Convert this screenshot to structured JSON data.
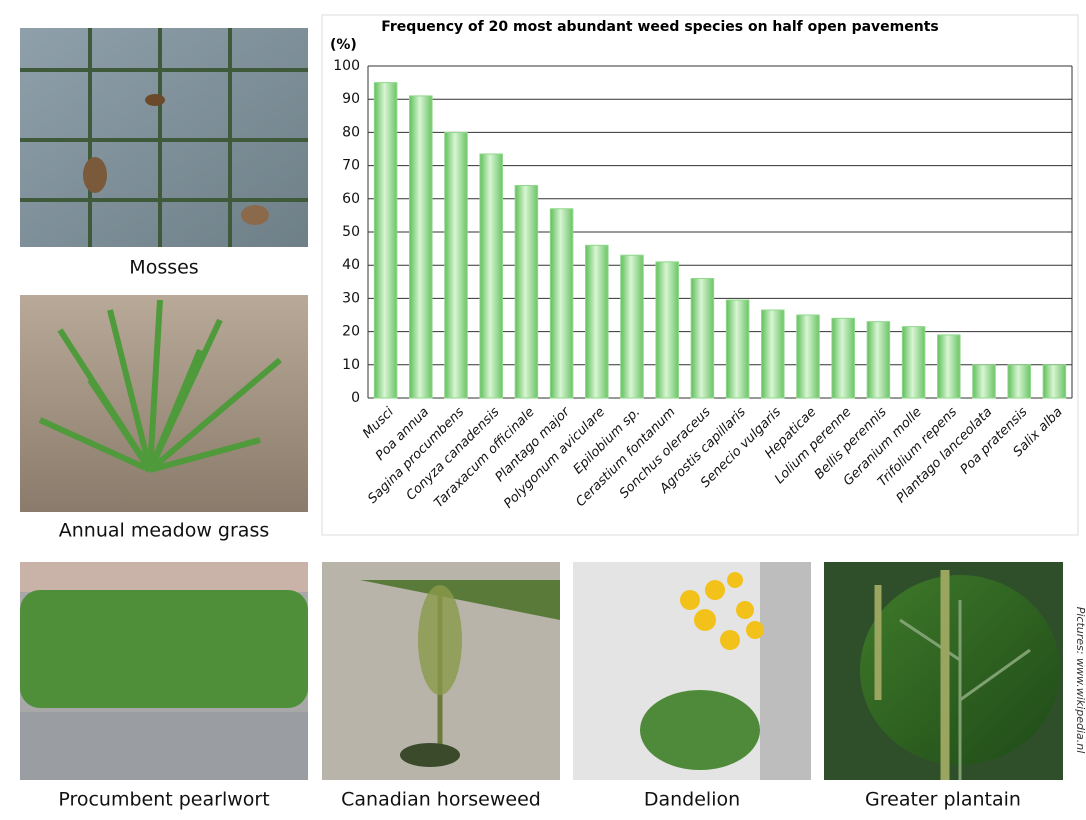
{
  "chart_data": {
    "type": "bar",
    "title": "Frequency of 20 most abundant weed species on half open pavements",
    "y_label": "(%)",
    "categories": [
      "Musci",
      "Poa annua",
      "Sagina procumbens",
      "Conyza canadensis",
      "Taraxacum officinale",
      "Plantago major",
      "Polygonum aviculare",
      "Epilobium sp.",
      "Cerastium fontanum",
      "Sonchus oleraceus",
      "Agrostis capillaris",
      "Senecio vulgaris",
      "Hepaticae",
      "Lolium perenne",
      "Bellis perennis",
      "Geranium molle",
      "Trifolium repens",
      "Plantago lanceolata",
      "Poa pratensis",
      "Salix alba"
    ],
    "values": [
      95,
      91,
      80,
      73.5,
      64,
      57,
      46,
      43,
      41,
      36,
      29.5,
      26.5,
      25,
      24,
      23,
      21.5,
      19,
      10,
      10,
      10
    ],
    "color": "#8fd88a",
    "ylim": [
      0,
      100
    ],
    "yticks": [
      0,
      10,
      20,
      30,
      40,
      50,
      60,
      70,
      80,
      90,
      100
    ],
    "grid": true
  },
  "photos": [
    {
      "caption": "Mosses"
    },
    {
      "caption": "Annual meadow grass"
    },
    {
      "caption": "Procumbent pearlwort"
    },
    {
      "caption": "Canadian horseweed"
    },
    {
      "caption": "Dandelion"
    },
    {
      "caption": "Greater plantain"
    }
  ],
  "credit": "Pictures: www.wikipedia.nl"
}
